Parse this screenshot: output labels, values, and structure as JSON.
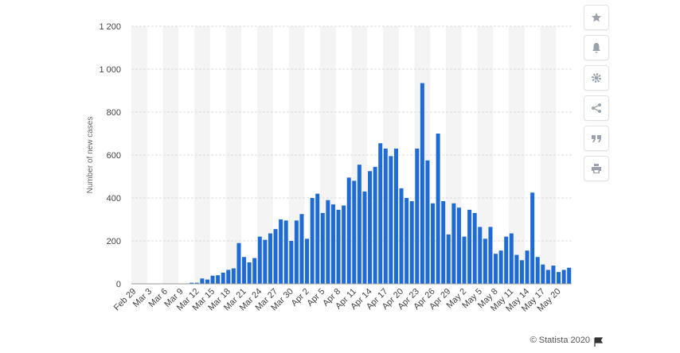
{
  "chart_data": {
    "type": "bar",
    "y_label": "Number of new cases",
    "credit": "© Statista 2020",
    "color": "#1f6bd6",
    "grid": true,
    "ylim": [
      0,
      1200
    ],
    "yticks": [
      0,
      200,
      400,
      600,
      800,
      {
        "value": 1000,
        "label": "1 000"
      },
      {
        "value": 1200,
        "label": "1 200"
      }
    ],
    "categories": [
      "Feb 29",
      null,
      null,
      "Mar 3",
      null,
      null,
      "Mar 6",
      null,
      null,
      "Mar 9",
      null,
      null,
      "Mar 12",
      null,
      null,
      "Mar 15",
      null,
      null,
      "Mar 18",
      null,
      null,
      "Mar 21",
      null,
      null,
      "Mar 24",
      null,
      null,
      "Mar 27",
      null,
      null,
      "Mar 30",
      null,
      null,
      "Apr 2",
      null,
      null,
      "Apr 5",
      null,
      null,
      "Apr 8",
      null,
      null,
      "Apr 11",
      null,
      null,
      "Apr 14",
      null,
      null,
      "Apr 17",
      null,
      null,
      "Apr 20",
      null,
      null,
      "Apr 23",
      null,
      null,
      "Apr 26",
      null,
      null,
      "Apr 29",
      null,
      null,
      "May 2",
      null,
      null,
      "May 5",
      null,
      null,
      "May 8",
      null,
      null,
      "May 11",
      null,
      null,
      "May 14",
      null,
      null,
      "May 17",
      null,
      null,
      "May 20",
      null,
      null
    ],
    "values": [
      0,
      0,
      0,
      0,
      0,
      0,
      2,
      2,
      0,
      0,
      0,
      5,
      5,
      25,
      20,
      38,
      40,
      52,
      65,
      72,
      190,
      125,
      100,
      120,
      220,
      205,
      235,
      255,
      300,
      295,
      200,
      295,
      325,
      210,
      400,
      420,
      330,
      390,
      370,
      345,
      365,
      495,
      480,
      555,
      430,
      525,
      545,
      655,
      630,
      595,
      630,
      445,
      400,
      385,
      630,
      935,
      575,
      375,
      700,
      385,
      230,
      375,
      355,
      220,
      345,
      330,
      265,
      210,
      265,
      140,
      155,
      220,
      235,
      135,
      110,
      155,
      425,
      125,
      90,
      65,
      85,
      55,
      65,
      75
    ]
  }
}
